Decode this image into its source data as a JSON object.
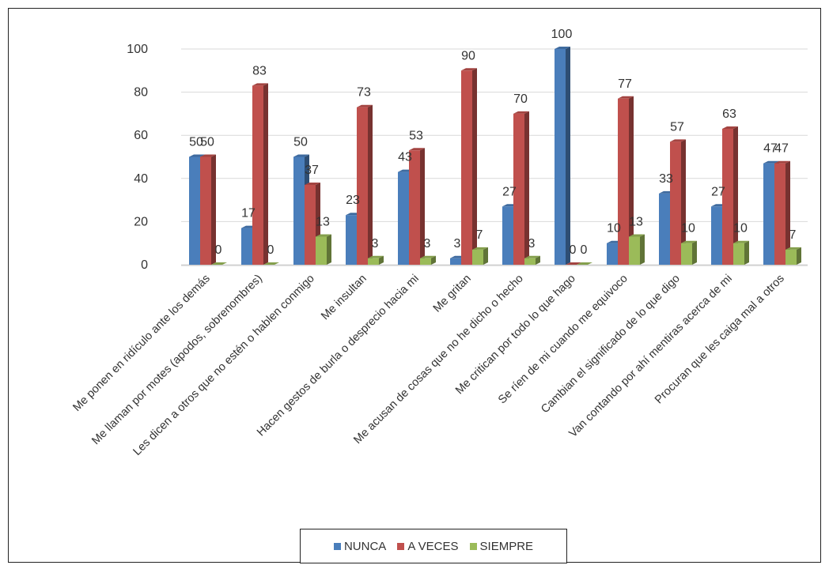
{
  "chart_data": {
    "type": "bar",
    "title": "",
    "xlabel": "",
    "ylabel": "",
    "ylim": [
      0,
      100
    ],
    "yticks": [
      0,
      20,
      40,
      60,
      80,
      100
    ],
    "grid": true,
    "legend_position": "bottom",
    "categories": [
      "Me ponen en ridículo ante los demás",
      "Me llaman por motes (apodos, sobrenombres)",
      "Les dicen a otros que no estén o hablen conmigo",
      "Me insultan",
      "Hacen gestos de burla o desprecio hacia mi",
      "Me gritan",
      "Me acusan de cosas que no he dicho o hecho",
      "Me critican por todo lo que hago",
      "Se ríen de mi cuando me equivoco",
      "Cambian el significado de lo que digo",
      "Van contando por ahí mentiras acerca de mi",
      "Procuran que les caiga mal a otros"
    ],
    "series": [
      {
        "name": "NUNCA",
        "color": "#4a7ebb",
        "values": [
          50,
          17,
          50,
          23,
          43,
          3,
          27,
          100,
          10,
          33,
          27,
          47
        ]
      },
      {
        "name": "A VECES",
        "color": "#c0504d",
        "values": [
          50,
          83,
          37,
          73,
          53,
          90,
          70,
          0,
          77,
          57,
          63,
          47
        ]
      },
      {
        "name": "SIEMPRE",
        "color": "#9bbb59",
        "values": [
          0,
          0,
          13,
          3,
          3,
          7,
          3,
          0,
          13,
          10,
          10,
          7
        ]
      }
    ]
  }
}
